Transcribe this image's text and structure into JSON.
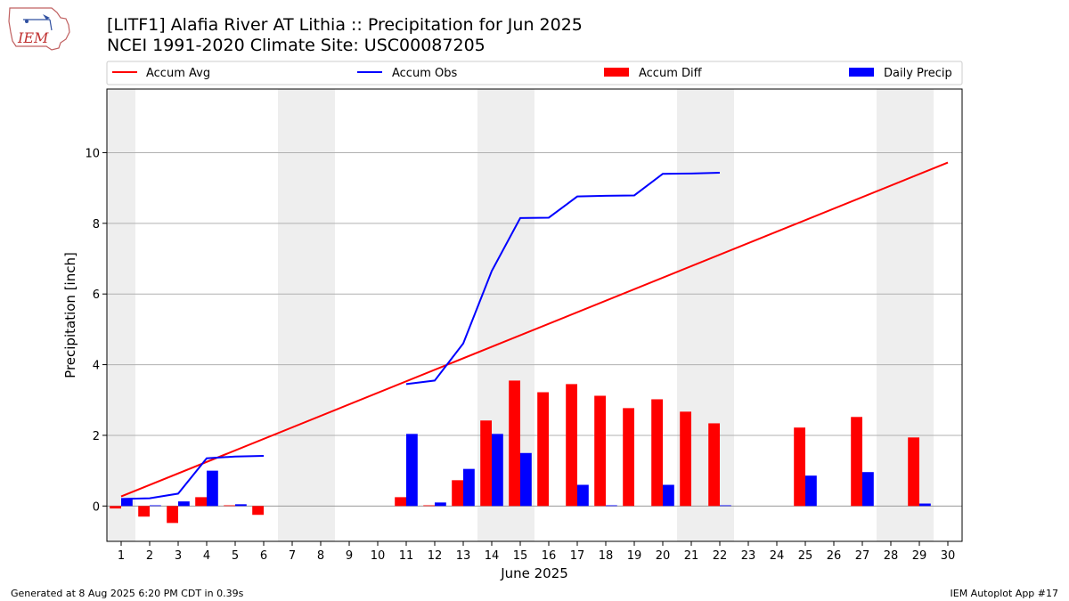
{
  "header": {
    "title": "[LITF1] Alafia River  AT Lithia :: Precipitation for Jun 2025",
    "subtitle": "NCEI 1991-2020 Climate Site: USC00087205",
    "logo_text": "IEM"
  },
  "footer": {
    "generated": "Generated at 8 Aug 2025 6:20 PM CDT in 0.39s",
    "app": "IEM Autoplot App #17"
  },
  "chart_data": {
    "type": "bar",
    "title": "[LITF1] Alafia River  AT Lithia :: Precipitation for Jun 2025",
    "subtitle": "NCEI 1991-2020 Climate Site: USC00087205",
    "xlabel": "June 2025",
    "ylabel": "Precipitation [inch]",
    "xlim": [
      0.5,
      30.5
    ],
    "ylim": [
      -1,
      11.8
    ],
    "x_ticks": [
      1,
      2,
      3,
      4,
      5,
      6,
      7,
      8,
      9,
      10,
      11,
      12,
      13,
      14,
      15,
      16,
      17,
      18,
      19,
      20,
      21,
      22,
      23,
      24,
      25,
      26,
      27,
      28,
      29,
      30
    ],
    "y_ticks": [
      0,
      2,
      4,
      6,
      8,
      10
    ],
    "grid": "horizontal",
    "legend_placement": "top",
    "weekend_shading": [
      [
        0.5,
        1.5
      ],
      [
        6.5,
        8.5
      ],
      [
        13.5,
        15.5
      ],
      [
        20.5,
        22.5
      ],
      [
        27.5,
        29.5
      ]
    ],
    "weekend_color": "#eeeeee",
    "series": [
      {
        "name": "Accum Avg",
        "kind": "line",
        "color": "#ff0000",
        "x": [
          1,
          30
        ],
        "y": [
          0.27,
          9.72
        ]
      },
      {
        "name": "Accum Obs",
        "kind": "line",
        "color": "#0000ff",
        "segments": [
          {
            "x": [
              1,
              2,
              3,
              4,
              5,
              6
            ],
            "y": [
              0.2,
              0.22,
              0.35,
              1.35,
              1.4,
              1.42
            ]
          },
          {
            "x": [
              11,
              12,
              13,
              14,
              15,
              16,
              17,
              18,
              19,
              20,
              21,
              22
            ],
            "y": [
              3.45,
              3.55,
              4.6,
              6.65,
              8.15,
              8.16,
              8.76,
              8.78,
              8.79,
              9.4,
              9.41,
              9.43
            ]
          }
        ]
      },
      {
        "name": "Accum Diff",
        "kind": "bar",
        "color": "#ff0000",
        "x": [
          1,
          2,
          3,
          4,
          5,
          6,
          11,
          12,
          13,
          14,
          15,
          16,
          17,
          18,
          19,
          20,
          21,
          22,
          25,
          27,
          29
        ],
        "values": [
          -0.07,
          -0.3,
          -0.48,
          0.25,
          0.02,
          -0.25,
          0.25,
          0.02,
          0.73,
          2.42,
          3.55,
          3.22,
          3.45,
          3.12,
          2.77,
          3.02,
          2.67,
          2.34,
          2.22,
          2.52,
          1.94
        ]
      },
      {
        "name": "Daily Precip",
        "kind": "bar",
        "color": "#0000ff",
        "x": [
          1,
          2,
          3,
          4,
          5,
          11,
          12,
          13,
          14,
          15,
          17,
          18,
          20,
          22,
          25,
          27,
          29
        ],
        "values": [
          0.2,
          0.02,
          0.13,
          1.0,
          0.05,
          2.04,
          0.1,
          1.05,
          2.04,
          1.5,
          0.6,
          0.02,
          0.6,
          0.02,
          0.86,
          0.96,
          0.07
        ]
      }
    ]
  }
}
